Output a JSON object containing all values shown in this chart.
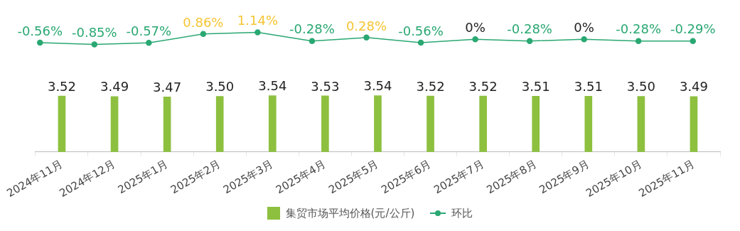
{
  "chart_data": [
    {
      "type": "line",
      "categories": [
        null,
        null,
        null,
        null,
        null,
        null,
        null,
        null,
        null,
        null,
        null,
        null,
        null
      ],
      "series": [
        {
          "name": "环比",
          "color": "#2aa872",
          "values": [
            -0.56,
            -0.85,
            -0.57,
            0.86,
            1.14,
            -0.28,
            0.28,
            -0.56,
            0,
            -0.28,
            0,
            -0.28,
            -0.29
          ],
          "value_labels": [
            "-0.56%",
            "-0.85%",
            "-0.57%",
            "0.86%",
            "1.14%",
            "-0.28%",
            "0.28%",
            "-0.56%",
            "0%",
            "-0.28%",
            "0%",
            "-0.28%",
            "-0.29%"
          ]
        }
      ],
      "tick_labels": false,
      "legend": "bottom",
      "marker": "circle",
      "line_style": "solid"
    },
    {
      "type": "bar",
      "categories": [
        "2024年11月",
        "2024年12月",
        "2025年1月",
        "2025年2月",
        "2025年3月",
        "2025年4月",
        "2025年5月",
        "2025年6月",
        "2025年7月",
        "2025年8月",
        "2025年9月",
        "2025年10月",
        "2025年11月"
      ],
      "series": [
        {
          "name": "集贸市场平均价格(元/公斤)",
          "color": "#8dc03f",
          "values": [
            3.52,
            3.49,
            3.47,
            3.5,
            3.54,
            3.53,
            3.54,
            3.52,
            3.52,
            3.51,
            3.51,
            3.5,
            3.49
          ],
          "value_labels": [
            "3.52",
            "3.49",
            "3.47",
            "3.50",
            "3.54",
            "3.53",
            "3.54",
            "3.52",
            "3.52",
            "3.51",
            "3.51",
            "3.50",
            "3.49"
          ]
        }
      ],
      "tick_labels": "x",
      "legend": "bottom"
    }
  ]
}
